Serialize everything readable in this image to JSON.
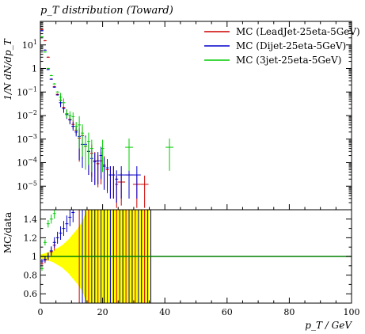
{
  "chart_data": [
    {
      "type": "scatter",
      "title": "p_T distribution (Toward)",
      "ylabel": "1/N dN/dp_T",
      "yscale": "log",
      "xlim": [
        0,
        100
      ],
      "ylim_exponents": [
        -6,
        2
      ],
      "yticks": [
        "10^-5",
        "10^-4",
        "10^-3",
        "10^-2",
        "10^-1",
        "1",
        "10^1"
      ],
      "legend_position": "top-right",
      "series": [
        {
          "name": "MC (LeadJet-25eta-5GeV)",
          "color": "#cc0000",
          "points": [
            [
              0.5,
              45.0
            ],
            [
              1.5,
              15.0
            ],
            [
              2.5,
              3.0
            ],
            [
              3.5,
              0.35
            ],
            [
              4.5,
              0.17
            ],
            [
              5.5,
              0.08
            ],
            [
              6.5,
              0.045
            ],
            [
              7.5,
              0.022
            ],
            [
              8.5,
              0.012
            ],
            [
              9.5,
              0.007
            ],
            [
              10.5,
              0.0042
            ],
            [
              11.5,
              0.0024
            ],
            [
              12.5,
              0.0011
            ],
            [
              13.5,
              0.0014
            ],
            [
              14.5,
              0.0005
            ],
            [
              15.5,
              0.0003
            ],
            [
              16.5,
              0.00025
            ],
            [
              17.5,
              0.00012
            ],
            [
              18.5,
              9e-05
            ],
            [
              19.5,
              0.00012
            ],
            [
              20.5,
              8e-05
            ],
            [
              21.5,
              5e-05
            ],
            [
              22.5,
              3e-05
            ],
            [
              23.5,
              3e-05
            ],
            [
              24.5,
              1.2e-05
            ],
            [
              26.0,
              1.5e-05
            ],
            [
              28.5,
              3e-05
            ],
            [
              31.0,
              1.2e-05
            ],
            [
              33.5,
              1.2e-05
            ]
          ]
        },
        {
          "name": "MC (Dijet-25eta-5GeV)",
          "color": "#0000cc",
          "points": [
            [
              0.5,
              40.0
            ],
            [
              1.5,
              6.0
            ],
            [
              2.5,
              0.9
            ],
            [
              3.5,
              0.35
            ],
            [
              4.5,
              0.16
            ],
            [
              5.5,
              0.075
            ],
            [
              6.5,
              0.035
            ],
            [
              7.5,
              0.02
            ],
            [
              8.5,
              0.011
            ],
            [
              9.5,
              0.0065
            ],
            [
              10.5,
              0.0035
            ],
            [
              11.5,
              0.002
            ],
            [
              12.5,
              0.0013
            ],
            [
              13.5,
              0.0006
            ],
            [
              14.5,
              0.0006
            ],
            [
              15.5,
              0.0003
            ],
            [
              16.5,
              0.00015
            ],
            [
              17.5,
              0.00011
            ],
            [
              18.5,
              0.00012
            ],
            [
              19.5,
              0.0002
            ],
            [
              20.5,
              7e-05
            ],
            [
              21.5,
              6e-05
            ],
            [
              22.5,
              3e-05
            ],
            [
              23.5,
              3e-05
            ],
            [
              24.5,
              2e-05
            ],
            [
              26.0,
              3e-05
            ],
            [
              28.5,
              3e-05
            ],
            [
              31.0,
              3e-05
            ]
          ]
        },
        {
          "name": "MC (3jet-25eta-5GeV)",
          "color": "#00cc00",
          "points": [
            [
              0.5,
              22.0
            ],
            [
              1.5,
              5.0
            ],
            [
              2.5,
              1.0
            ],
            [
              3.5,
              0.5
            ],
            [
              4.5,
              0.22
            ],
            [
              5.5,
              0.1
            ],
            [
              6.5,
              0.06
            ],
            [
              7.5,
              0.035
            ],
            [
              8.5,
              0.012
            ],
            [
              9.5,
              0.01
            ],
            [
              10.5,
              0.009
            ],
            [
              11.5,
              0.0035
            ],
            [
              12.5,
              0.004
            ],
            [
              13.5,
              0.0018
            ],
            [
              14.5,
              0.0005
            ],
            [
              15.5,
              0.0008
            ],
            [
              16.5,
              0.0004
            ],
            [
              20.0,
              0.0004
            ],
            [
              28.5,
              0.00045
            ],
            [
              41.5,
              0.00045
            ]
          ]
        }
      ]
    },
    {
      "type": "scatter",
      "ylabel": "MC/data",
      "xlabel": "p_T / GeV",
      "xlim": [
        0,
        100
      ],
      "ylim": [
        0.5,
        1.5
      ],
      "xticks": [
        0,
        20,
        40,
        60,
        80,
        100
      ],
      "yticks": [
        0.6,
        0.8,
        1,
        1.2,
        1.4
      ],
      "reference": 1,
      "reference_color": "#008000",
      "band_color": "#ffff00",
      "band_halfwidth": [
        [
          0,
          0.02
        ],
        [
          1,
          0.03
        ],
        [
          2,
          0.04
        ],
        [
          3,
          0.05
        ],
        [
          4,
          0.06
        ],
        [
          5,
          0.08
        ],
        [
          6,
          0.1
        ],
        [
          7,
          0.12
        ],
        [
          8,
          0.15
        ],
        [
          9,
          0.18
        ],
        [
          10,
          0.22
        ],
        [
          11,
          0.26
        ],
        [
          12,
          0.3
        ],
        [
          13,
          0.35
        ],
        [
          14,
          0.42
        ],
        [
          15,
          0.5
        ],
        [
          16,
          0.5
        ],
        [
          35,
          0.5
        ]
      ],
      "series": [
        {
          "name": "MC (LeadJet-25eta-5GeV)",
          "color": "#cc0000",
          "points": [
            [
              0.5,
              0.93
            ],
            [
              1.5,
              0.96
            ],
            [
              2.5,
              1.0
            ],
            [
              3.5,
              1.05
            ],
            [
              4.5,
              1.12
            ]
          ]
        },
        {
          "name": "MC (Dijet-25eta-5GeV)",
          "color": "#0000cc",
          "points": [
            [
              0.5,
              0.95
            ],
            [
              1.5,
              0.97
            ],
            [
              2.5,
              1.0
            ],
            [
              3.5,
              1.06
            ],
            [
              4.5,
              1.15
            ],
            [
              5.5,
              1.2
            ],
            [
              6.5,
              1.25
            ],
            [
              7.5,
              1.3
            ],
            [
              8.5,
              1.35
            ],
            [
              9.5,
              1.42
            ],
            [
              10.5,
              1.47
            ]
          ]
        },
        {
          "name": "MC (3jet-25eta-5GeV)",
          "color": "#00cc00",
          "points": [
            [
              0.5,
              0.87
            ],
            [
              1.5,
              1.15
            ],
            [
              2.5,
              1.35
            ],
            [
              3.5,
              1.4
            ],
            [
              4.5,
              1.46
            ]
          ]
        }
      ]
    }
  ]
}
